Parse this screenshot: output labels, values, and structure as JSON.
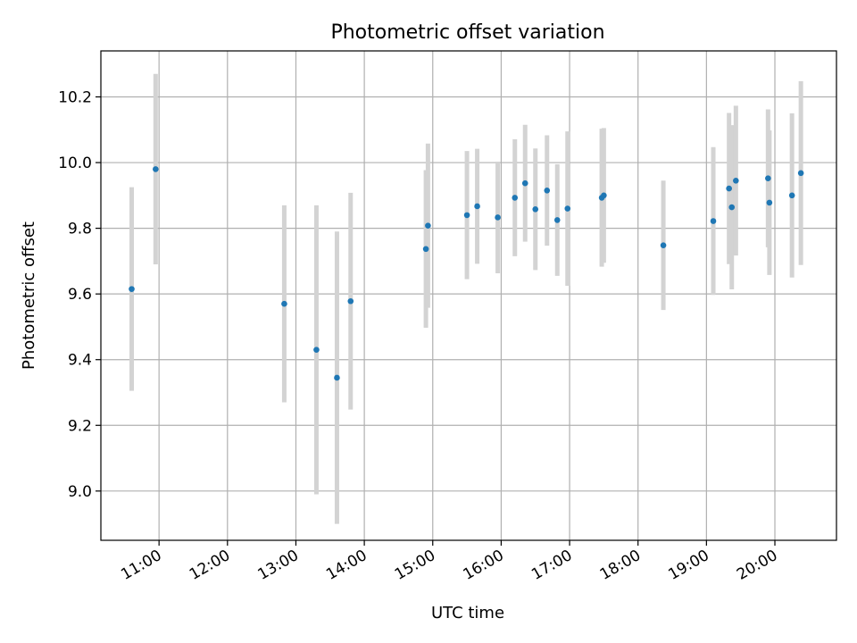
{
  "chart_data": {
    "type": "scatter",
    "title": "Photometric offset variation",
    "xlabel": "UTC time",
    "ylabel": "Photometric offset",
    "x_unit": "UTC hour",
    "xlim": [
      10.15,
      20.9
    ],
    "ylim": [
      8.85,
      10.34
    ],
    "grid": true,
    "x_tick_values": [
      11,
      12,
      13,
      14,
      15,
      16,
      17,
      18,
      19,
      20
    ],
    "x_tick_labels": [
      "11:00",
      "12:00",
      "13:00",
      "14:00",
      "15:00",
      "16:00",
      "17:00",
      "18:00",
      "19:00",
      "20:00"
    ],
    "y_tick_values": [
      9.0,
      9.2,
      9.4,
      9.6,
      9.8,
      10.0,
      10.2
    ],
    "y_tick_labels": [
      "9.0",
      "9.2",
      "9.4",
      "9.6",
      "9.8",
      "10.0",
      "10.2"
    ],
    "marker_color": "#1f77b4",
    "errorbar_color": "#d3d3d3",
    "points": [
      {
        "x": 10.6,
        "y": 9.615,
        "err": 0.31
      },
      {
        "x": 10.95,
        "y": 9.98,
        "err": 0.29
      },
      {
        "x": 12.83,
        "y": 9.57,
        "err": 0.3
      },
      {
        "x": 13.3,
        "y": 9.43,
        "err": 0.44
      },
      {
        "x": 13.6,
        "y": 9.345,
        "err": 0.445
      },
      {
        "x": 13.8,
        "y": 9.578,
        "err": 0.33
      },
      {
        "x": 14.9,
        "y": 9.737,
        "err": 0.24
      },
      {
        "x": 14.93,
        "y": 9.808,
        "err": 0.25
      },
      {
        "x": 15.5,
        "y": 9.84,
        "err": 0.195
      },
      {
        "x": 15.65,
        "y": 9.867,
        "err": 0.175
      },
      {
        "x": 15.95,
        "y": 9.833,
        "err": 0.17
      },
      {
        "x": 16.2,
        "y": 9.893,
        "err": 0.178
      },
      {
        "x": 16.35,
        "y": 9.937,
        "err": 0.178
      },
      {
        "x": 16.5,
        "y": 9.858,
        "err": 0.185
      },
      {
        "x": 16.67,
        "y": 9.915,
        "err": 0.168
      },
      {
        "x": 16.82,
        "y": 9.825,
        "err": 0.17
      },
      {
        "x": 16.97,
        "y": 9.86,
        "err": 0.235
      },
      {
        "x": 17.47,
        "y": 9.893,
        "err": 0.21
      },
      {
        "x": 17.5,
        "y": 9.9,
        "err": 0.205
      },
      {
        "x": 18.37,
        "y": 9.748,
        "err": 0.197
      },
      {
        "x": 19.1,
        "y": 9.822,
        "err": 0.225
      },
      {
        "x": 19.33,
        "y": 9.921,
        "err": 0.23
      },
      {
        "x": 19.37,
        "y": 9.864,
        "err": 0.25
      },
      {
        "x": 19.43,
        "y": 9.945,
        "err": 0.228
      },
      {
        "x": 19.9,
        "y": 9.952,
        "err": 0.21
      },
      {
        "x": 19.92,
        "y": 9.878,
        "err": 0.22
      },
      {
        "x": 20.25,
        "y": 9.9,
        "err": 0.25
      },
      {
        "x": 20.38,
        "y": 9.968,
        "err": 0.28
      }
    ]
  }
}
